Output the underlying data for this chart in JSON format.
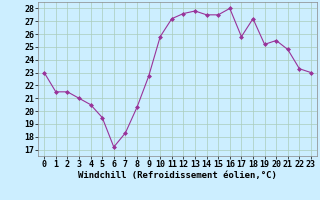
{
  "x": [
    0,
    1,
    2,
    3,
    4,
    5,
    6,
    7,
    8,
    9,
    10,
    11,
    12,
    13,
    14,
    15,
    16,
    17,
    18,
    19,
    20,
    21,
    22,
    23
  ],
  "y": [
    23.0,
    21.5,
    21.5,
    21.0,
    20.5,
    19.5,
    17.2,
    18.3,
    20.3,
    22.7,
    25.8,
    27.2,
    27.6,
    27.8,
    27.5,
    27.5,
    28.0,
    25.8,
    27.2,
    25.2,
    25.5,
    24.8,
    23.3,
    23.0
  ],
  "line_color": "#993399",
  "marker": "D",
  "marker_size": 2,
  "bg_color": "#cceeff",
  "grid_color": "#aaccbb",
  "xlabel": "Windchill (Refroidissement éolien,°C)",
  "xlim": [
    -0.5,
    23.5
  ],
  "ylim": [
    16.5,
    28.5
  ],
  "yticks": [
    17,
    18,
    19,
    20,
    21,
    22,
    23,
    24,
    25,
    26,
    27,
    28
  ],
  "xticks": [
    0,
    1,
    2,
    3,
    4,
    5,
    6,
    7,
    8,
    9,
    10,
    11,
    12,
    13,
    14,
    15,
    16,
    17,
    18,
    19,
    20,
    21,
    22,
    23
  ],
  "xlabel_fontsize": 6.5,
  "tick_fontsize": 6.0
}
